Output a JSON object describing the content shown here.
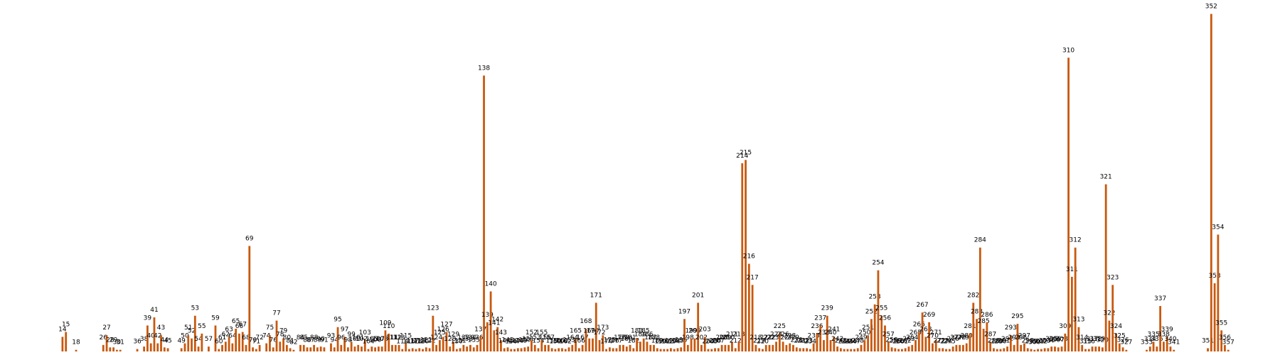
{
  "chart_data": {
    "type": "bar",
    "color": "#c8590e",
    "xlim": [
      0,
      358
    ],
    "ylim": [
      0,
      420
    ],
    "x": [
      14,
      15,
      18,
      26,
      27,
      28,
      29,
      30,
      31,
      36,
      38,
      39,
      40,
      41,
      42,
      43,
      44,
      45,
      49,
      50,
      51,
      52,
      53,
      54,
      55,
      57,
      59,
      60,
      61,
      62,
      63,
      64,
      65,
      66,
      67,
      68,
      69,
      70,
      71,
      72,
      74,
      75,
      76,
      77,
      78,
      79,
      80,
      81,
      82,
      84,
      85,
      86,
      87,
      88,
      89,
      90,
      91,
      93,
      94,
      95,
      96,
      97,
      98,
      99,
      100,
      101,
      102,
      103,
      104,
      105,
      106,
      107,
      108,
      109,
      110,
      111,
      112,
      113,
      114,
      115,
      116,
      117,
      118,
      119,
      120,
      121,
      122,
      123,
      124,
      125,
      126,
      127,
      128,
      129,
      130,
      131,
      132,
      133,
      134,
      135,
      136,
      137,
      138,
      139,
      140,
      141,
      142,
      143,
      144,
      145,
      146,
      147,
      148,
      149,
      150,
      151,
      152,
      153,
      154,
      155,
      156,
      157,
      158,
      159,
      160,
      161,
      162,
      163,
      164,
      165,
      166,
      167,
      168,
      169,
      170,
      171,
      172,
      173,
      174,
      175,
      176,
      177,
      178,
      179,
      180,
      181,
      182,
      183,
      184,
      185,
      186,
      187,
      188,
      189,
      190,
      191,
      192,
      193,
      194,
      195,
      196,
      197,
      198,
      199,
      200,
      201,
      202,
      203,
      204,
      205,
      206,
      207,
      208,
      209,
      210,
      211,
      212,
      213,
      214,
      215,
      216,
      217,
      218,
      219,
      220,
      221,
      222,
      223,
      224,
      225,
      226,
      227,
      228,
      229,
      230,
      231,
      232,
      233,
      234,
      235,
      236,
      237,
      238,
      239,
      240,
      241,
      242,
      243,
      244,
      245,
      246,
      247,
      248,
      249,
      250,
      251,
      252,
      253,
      254,
      255,
      256,
      257,
      258,
      259,
      260,
      261,
      262,
      263,
      264,
      265,
      266,
      267,
      268,
      269,
      270,
      271,
      272,
      273,
      274,
      275,
      276,
      277,
      278,
      279,
      280,
      281,
      282,
      283,
      284,
      285,
      286,
      287,
      288,
      289,
      290,
      291,
      292,
      293,
      294,
      295,
      296,
      297,
      298,
      299,
      300,
      301,
      302,
      303,
      304,
      305,
      306,
      307,
      308,
      309,
      310,
      311,
      312,
      313,
      314,
      315,
      316,
      317,
      318,
      319,
      320,
      321,
      322,
      323,
      324,
      325,
      326,
      327,
      333,
      334,
      335,
      336,
      337,
      338,
      339,
      340,
      341,
      351,
      352,
      353,
      354,
      355,
      356,
      357
    ],
    "values": [
      18,
      24,
      2,
      8,
      20,
      5,
      5,
      2,
      2,
      3,
      6,
      32,
      10,
      42,
      10,
      20,
      5,
      4,
      4,
      10,
      20,
      16,
      44,
      6,
      22,
      6,
      32,
      3,
      8,
      12,
      18,
      10,
      28,
      22,
      24,
      8,
      130,
      5,
      3,
      8,
      10,
      20,
      5,
      38,
      12,
      16,
      8,
      4,
      2,
      8,
      8,
      5,
      5,
      8,
      5,
      6,
      5,
      10,
      5,
      30,
      8,
      18,
      5,
      12,
      6,
      8,
      6,
      14,
      3,
      6,
      5,
      6,
      6,
      26,
      22,
      8,
      8,
      8,
      3,
      10,
      3,
      4,
      3,
      4,
      3,
      5,
      4,
      44,
      8,
      14,
      18,
      24,
      6,
      12,
      3,
      4,
      8,
      6,
      8,
      5,
      8,
      18,
      340,
      36,
      74,
      26,
      30,
      14,
      4,
      5,
      3,
      3,
      4,
      4,
      5,
      6,
      14,
      8,
      4,
      14,
      8,
      8,
      4,
      3,
      4,
      4,
      3,
      5,
      8,
      16,
      4,
      8,
      28,
      16,
      16,
      60,
      14,
      20,
      3,
      5,
      4,
      4,
      8,
      8,
      6,
      8,
      4,
      16,
      12,
      16,
      12,
      8,
      8,
      4,
      3,
      3,
      3,
      4,
      3,
      4,
      5,
      40,
      8,
      16,
      16,
      60,
      8,
      18,
      3,
      3,
      4,
      4,
      8,
      8,
      8,
      12,
      4,
      12,
      232,
      236,
      108,
      82,
      8,
      4,
      3,
      8,
      8,
      8,
      12,
      22,
      12,
      8,
      10,
      8,
      5,
      4,
      4,
      4,
      3,
      10,
      22,
      32,
      14,
      44,
      14,
      18,
      6,
      4,
      3,
      3,
      3,
      3,
      4,
      8,
      14,
      20,
      40,
      58,
      100,
      44,
      32,
      12,
      5,
      4,
      3,
      3,
      4,
      6,
      8,
      14,
      24,
      48,
      18,
      36,
      10,
      14,
      4,
      4,
      3,
      3,
      6,
      8,
      8,
      8,
      10,
      22,
      60,
      40,
      128,
      28,
      36,
      12,
      4,
      3,
      3,
      4,
      6,
      20,
      8,
      34,
      8,
      10,
      4,
      3,
      2,
      3,
      3,
      4,
      4,
      6,
      6,
      5,
      6,
      22,
      362,
      92,
      128,
      30,
      8,
      3,
      3,
      6,
      6,
      6,
      5,
      206,
      38,
      82,
      22,
      10,
      5,
      2,
      2,
      6,
      12,
      6,
      56,
      12,
      18,
      6,
      2,
      4,
      416,
      84,
      144,
      26,
      8,
      2
    ]
  }
}
